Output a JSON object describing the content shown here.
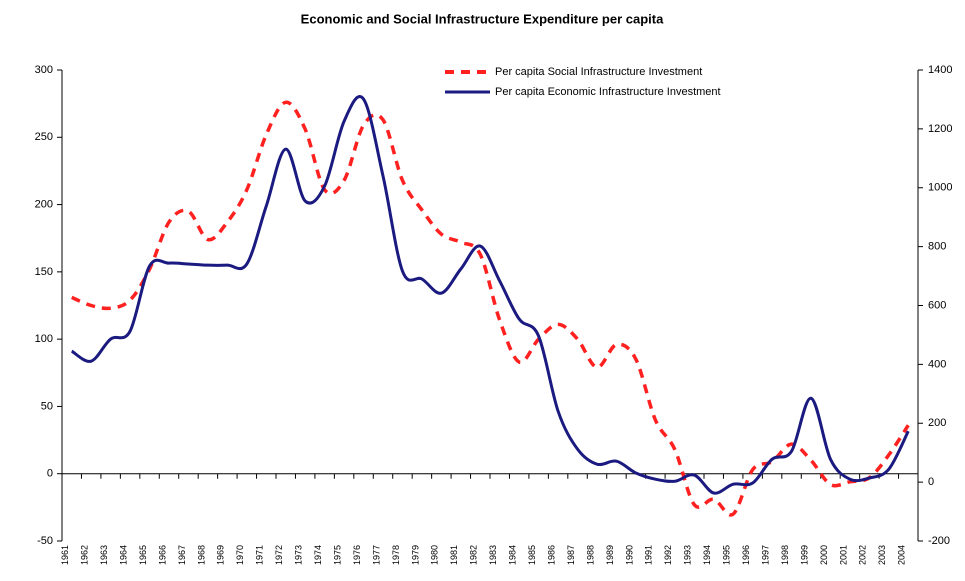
{
  "chart_data": {
    "type": "line",
    "title": "Economic and Social Infrastructure Expenditure per capita",
    "categories": [
      "1961",
      "1962",
      "1963",
      "1964",
      "1965",
      "1966",
      "1967",
      "1968",
      "1969",
      "1970",
      "1971",
      "1972",
      "1973",
      "1974",
      "1975",
      "1976",
      "1977",
      "1978",
      "1979",
      "1980",
      "1981",
      "1982",
      "1983",
      "1984",
      "1985",
      "1986",
      "1987",
      "1988",
      "1989",
      "1990",
      "1991",
      "1992",
      "1993",
      "1994",
      "1995",
      "1996",
      "1997",
      "1998",
      "1999",
      "2000",
      "2001",
      "2002",
      "2003",
      "2004"
    ],
    "series": [
      {
        "name": "Per capita Social Infrastructure Investment",
        "color": "#ff2020",
        "dashed": true,
        "values": [
          131,
          125,
          123,
          129,
          152,
          187,
          195,
          174,
          187,
          211,
          252,
          276,
          256,
          211,
          218,
          259,
          263,
          218,
          196,
          178,
          172,
          163,
          114,
          83,
          100,
          111,
          100,
          79,
          96,
          85,
          40,
          18,
          -23,
          -19,
          -30,
          3,
          9,
          22,
          10,
          -8,
          -6,
          -3,
          14,
          36
        ]
      },
      {
        "name": "Per capita Economic Infrastructure Investment",
        "color": "#1a1a80",
        "axis": "y2",
        "values": [
          445,
          411,
          486,
          513,
          734,
          744,
          741,
          737,
          737,
          741,
          938,
          1131,
          955,
          1006,
          1226,
          1301,
          1040,
          717,
          690,
          642,
          724,
          802,
          683,
          554,
          496,
          241,
          112,
          61,
          71,
          31,
          10,
          3,
          24,
          -37,
          -7,
          -3,
          78,
          105,
          285,
          78,
          10,
          14,
          44,
          173
        ]
      }
    ],
    "ylim": [
      -50,
      300
    ],
    "yticks": [
      -50,
      0,
      50,
      100,
      150,
      200,
      250,
      300
    ],
    "y2lim": [
      -200,
      1400
    ],
    "y2ticks": [
      -200,
      0,
      200,
      400,
      600,
      800,
      1000,
      1200,
      1400
    ],
    "legend": "top-right"
  }
}
